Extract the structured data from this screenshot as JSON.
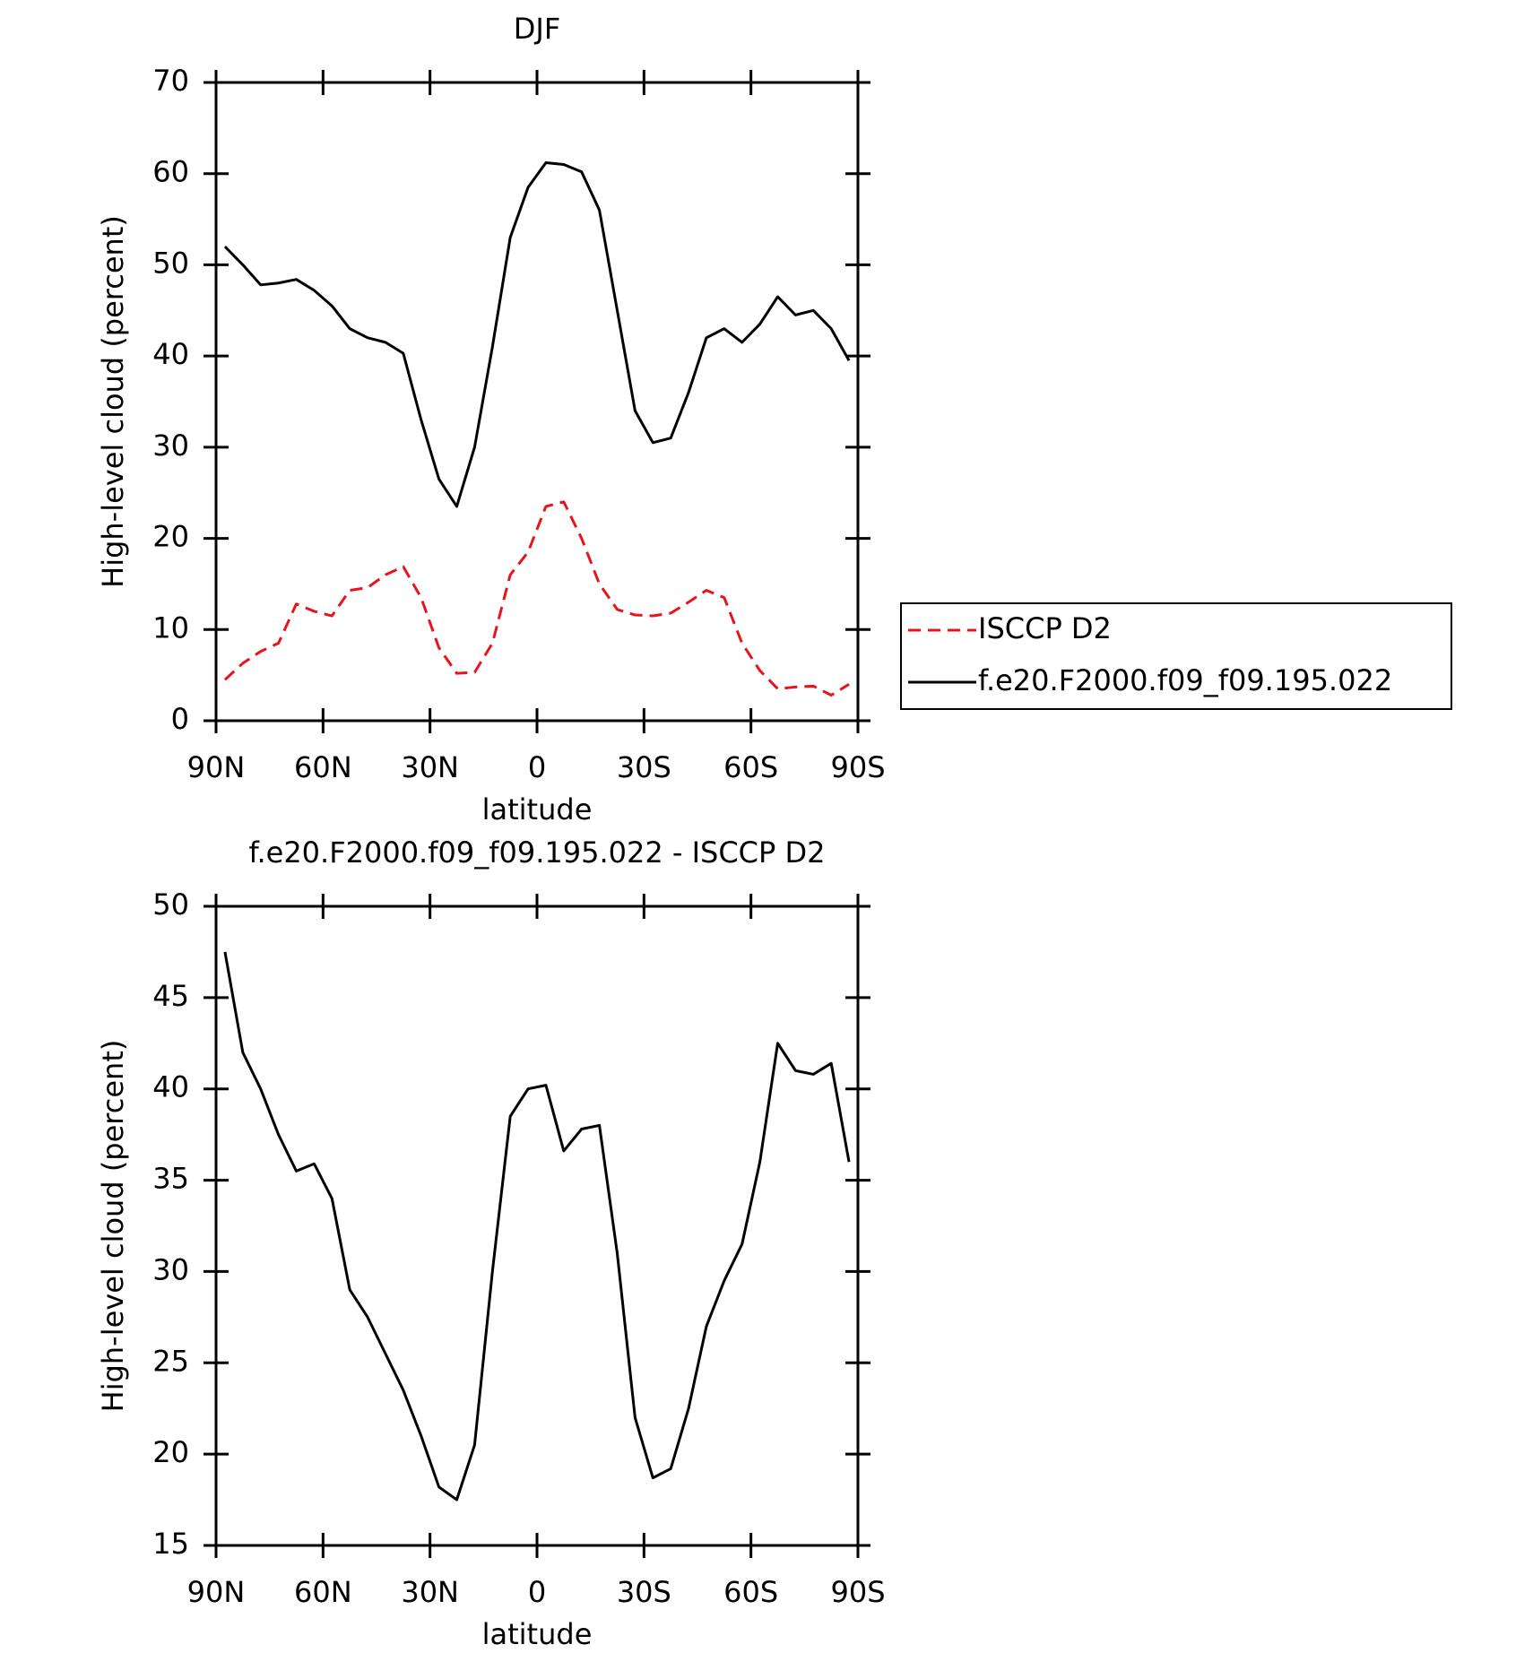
{
  "chart_data": [
    {
      "type": "line",
      "title": "DJF",
      "xlabel": "latitude",
      "ylabel": "High-level cloud (percent)",
      "x": [
        87.5,
        82.5,
        77.5,
        72.5,
        67.5,
        62.5,
        57.5,
        52.5,
        47.5,
        42.5,
        37.5,
        32.5,
        27.5,
        22.5,
        17.5,
        12.5,
        7.5,
        2.5,
        -2.5,
        -7.5,
        -12.5,
        -17.5,
        -22.5,
        -27.5,
        -32.5,
        -37.5,
        -42.5,
        -47.5,
        -52.5,
        -57.5,
        -62.5,
        -67.5,
        -72.5,
        -77.5,
        -82.5,
        -87.5
      ],
      "xlim": [
        90,
        -90
      ],
      "xticks": [
        {
          "value": 90,
          "label": "90N"
        },
        {
          "value": 60,
          "label": "60N"
        },
        {
          "value": 30,
          "label": "30N"
        },
        0,
        {
          "value": -30,
          "label": "30S"
        },
        {
          "value": -60,
          "label": "60S"
        },
        {
          "value": -90,
          "label": "90S"
        }
      ],
      "ylim": [
        0,
        70
      ],
      "yticks": [
        0,
        10,
        20,
        30,
        40,
        50,
        60,
        70
      ],
      "legend": "outside right",
      "series": [
        {
          "name": "ISCCP D2",
          "color": "#e8141c",
          "linestyle": "dashed",
          "values": [
            4.5,
            6.3,
            7.6,
            8.5,
            12.8,
            12,
            11.5,
            14.3,
            14.6,
            16,
            16.9,
            13.5,
            8,
            5.2,
            5.3,
            8.5,
            16,
            18.5,
            23.5,
            24,
            20,
            15,
            12.2,
            11.6,
            11.5,
            11.8,
            13,
            14.3,
            13.5,
            8.5,
            5.5,
            3.5,
            3.7,
            3.8,
            2.8,
            4
          ]
        },
        {
          "name": "f.e20.F2000.f09_f09.195.022",
          "color": "#000000",
          "linestyle": "solid",
          "values": [
            52,
            50,
            47.8,
            48,
            48.4,
            47.2,
            45.5,
            43,
            42,
            41.5,
            40.3,
            33,
            26.5,
            23.5,
            30,
            41,
            53,
            58.5,
            61.2,
            61,
            60.2,
            56,
            45,
            34,
            30.5,
            31,
            36,
            42,
            43,
            41.5,
            43.5,
            46.5,
            44.5,
            45,
            43,
            39.5
          ]
        }
      ]
    },
    {
      "type": "line",
      "title": "f.e20.F2000.f09_f09.195.022 - ISCCP D2",
      "xlabel": "latitude",
      "ylabel": "High-level cloud (percent)",
      "x": [
        87.5,
        82.5,
        77.5,
        72.5,
        67.5,
        62.5,
        57.5,
        52.5,
        47.5,
        42.5,
        37.5,
        32.5,
        27.5,
        22.5,
        17.5,
        12.5,
        7.5,
        2.5,
        -2.5,
        -7.5,
        -12.5,
        -17.5,
        -22.5,
        -27.5,
        -32.5,
        -37.5,
        -42.5,
        -47.5,
        -52.5,
        -57.5,
        -62.5,
        -67.5,
        -72.5,
        -77.5,
        -82.5,
        -87.5
      ],
      "xlim": [
        90,
        -90
      ],
      "xticks": [
        {
          "value": 90,
          "label": "90N"
        },
        {
          "value": 60,
          "label": "60N"
        },
        {
          "value": 30,
          "label": "30N"
        },
        0,
        {
          "value": -30,
          "label": "30S"
        },
        {
          "value": -60,
          "label": "60S"
        },
        {
          "value": -90,
          "label": "90S"
        }
      ],
      "ylim": [
        15,
        50
      ],
      "yticks": [
        15,
        20,
        25,
        30,
        35,
        40,
        45,
        50
      ],
      "series": [
        {
          "color": "#000000",
          "linestyle": "solid",
          "values": [
            47.5,
            42,
            40,
            37.5,
            35.5,
            35.9,
            34,
            29,
            27.5,
            25.5,
            23.5,
            21,
            18.2,
            17.5,
            20.5,
            30,
            38.5,
            40,
            40.2,
            36.6,
            37.8,
            38,
            31,
            22,
            18.7,
            19.2,
            22.5,
            27,
            29.5,
            31.5,
            36,
            42.5,
            41,
            40.8,
            41.4,
            36
          ]
        }
      ]
    }
  ]
}
